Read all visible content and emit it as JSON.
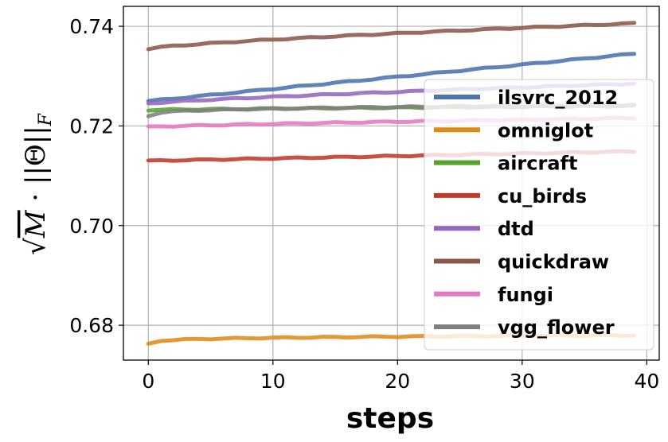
{
  "chart_data": {
    "type": "line",
    "xlabel": "steps",
    "ylabel": "√M · ||Θ||_F",
    "xlim": [
      -2,
      41
    ],
    "ylim": [
      0.673,
      0.744
    ],
    "xticks": [
      0,
      10,
      20,
      30,
      40
    ],
    "yticks": [
      0.68,
      0.7,
      0.72,
      0.74
    ],
    "xtick_labels": [
      "0",
      "10",
      "20",
      "30",
      "40"
    ],
    "ytick_labels": [
      "0.68",
      "0.70",
      "0.72",
      "0.74"
    ],
    "grid": true,
    "legend_position": "center-right",
    "series": [
      {
        "name": "ilsvrc_2012",
        "color": "#4c72b0",
        "start": 0.725,
        "end": 0.7345,
        "curve": 1.0
      },
      {
        "name": "omniglot",
        "color": "#dd8c1b",
        "start": 0.6762,
        "end": 0.678,
        "curve": 0.25
      },
      {
        "name": "aircraft",
        "color": "#55a32a",
        "start": 0.7232,
        "end": 0.724,
        "curve": 0.8
      },
      {
        "name": "cu_birds",
        "color": "#c0392b",
        "start": 0.713,
        "end": 0.7149,
        "curve": 1.0
      },
      {
        "name": "dtd",
        "color": "#9467bd",
        "start": 0.7245,
        "end": 0.7285,
        "curve": 0.8
      },
      {
        "name": "quickdraw",
        "color": "#8c564b",
        "start": 0.7355,
        "end": 0.7406,
        "curve": 0.75
      },
      {
        "name": "fungi",
        "color": "#e377c2",
        "start": 0.7198,
        "end": 0.7216,
        "curve": 0.8
      },
      {
        "name": "vgg_flower",
        "color": "#7f7f7f",
        "start": 0.722,
        "end": 0.7242,
        "curve": 0.3
      }
    ]
  }
}
